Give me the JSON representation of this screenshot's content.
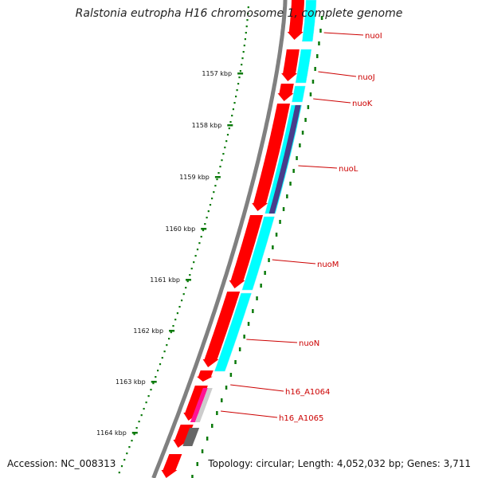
{
  "title": "Ralstonia eutropha H16 chromosome 1, complete genome",
  "accession": "Accession: NC_008313",
  "topology": "Topology: circular; Length: 4,052,032 bp; Genes: 3,711",
  "ruler": {
    "ticks": [
      "1157 kbp",
      "1158 kbp",
      "1159 kbp",
      "1160 kbp",
      "1161 kbp",
      "1162 kbp",
      "1163 kbp",
      "1164 kbp"
    ],
    "tick_color": "#0a7a0a"
  },
  "genes": [
    "nuoI",
    "nuoJ",
    "nuoK",
    "nuoL",
    "nuoM",
    "nuoN",
    "h16_A1064",
    "h16_A1065"
  ],
  "colors": {
    "backbone": "#808080",
    "cds": "#ff0000",
    "cyan_track": "#00ffff",
    "purple_track": "#483d8b",
    "magenta_track": "#ff1493",
    "gray_track": "#666666",
    "label": "#cc0000"
  }
}
